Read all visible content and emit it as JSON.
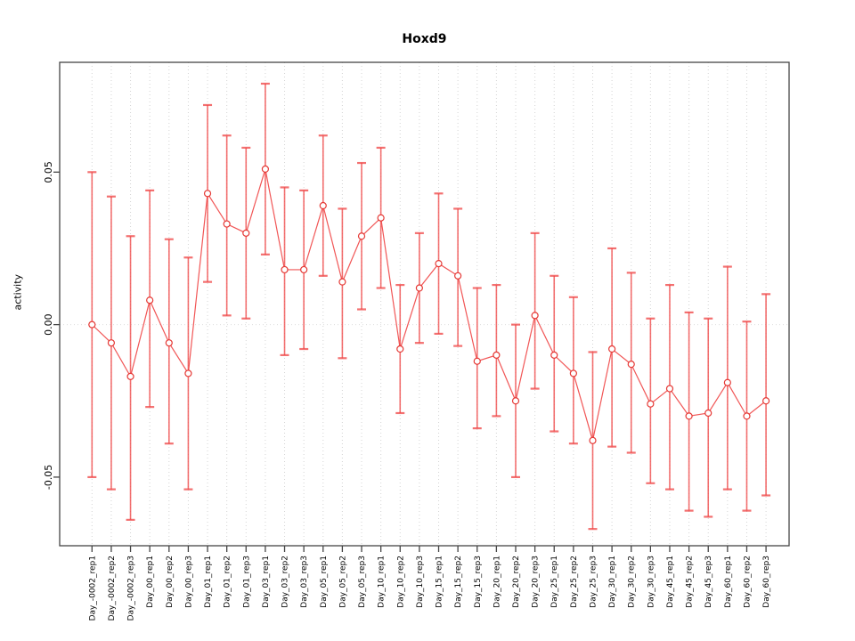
{
  "chart_data": {
    "type": "line",
    "title": "Hoxd9",
    "xlabel": "",
    "ylabel": "activity",
    "legend_position": "none",
    "grid": "vertical-dotted-per-category, dotted-zero-line",
    "ylim": [
      -0.0725,
      0.086
    ],
    "yticks": [
      0.05,
      0.0,
      -0.05
    ],
    "ytick_labels": [
      "0.05",
      "0.00",
      "-0.05"
    ],
    "zero_line": 0,
    "colors": {
      "point_stroke": "#e53935",
      "line": "#ef4444",
      "error_bar": "#f04848",
      "grid": "#d4d4d4",
      "axis": "#454545",
      "tick_text": "#000000"
    },
    "categories": [
      "Day_-0002_rep1",
      "Day_-0002_rep2",
      "Day_-0002_rep3",
      "Day_00_rep1",
      "Day_00_rep2",
      "Day_00_rep3",
      "Day_01_rep1",
      "Day_01_rep2",
      "Day_01_rep3",
      "Day_03_rep1",
      "Day_03_rep2",
      "Day_03_rep3",
      "Day_05_rep1",
      "Day_05_rep2",
      "Day_05_rep3",
      "Day_10_rep1",
      "Day_10_rep2",
      "Day_10_rep3",
      "Day_15_rep1",
      "Day_15_rep2",
      "Day_15_rep3",
      "Day_20_rep1",
      "Day_20_rep2",
      "Day_20_rep3",
      "Day_25_rep1",
      "Day_25_rep2",
      "Day_25_rep3",
      "Day_30_rep1",
      "Day_30_rep2",
      "Day_30_rep3",
      "Day_45_rep1",
      "Day_45_rep2",
      "Day_45_rep3",
      "Day_60_rep1",
      "Day_60_rep2",
      "Day_60_rep3"
    ],
    "series": [
      {
        "name": "activity",
        "values": [
          0.0,
          -0.006,
          -0.017,
          0.008,
          -0.006,
          -0.016,
          0.043,
          0.033,
          0.03,
          0.051,
          0.018,
          0.018,
          0.039,
          0.014,
          0.029,
          0.035,
          -0.008,
          0.012,
          0.02,
          0.016,
          -0.012,
          -0.01,
          -0.025,
          0.003,
          -0.01,
          -0.016,
          -0.038,
          -0.008,
          -0.013,
          -0.026,
          -0.021,
          -0.03,
          -0.029,
          -0.019,
          -0.03,
          -0.025
        ],
        "error_high": [
          0.05,
          0.042,
          0.029,
          0.044,
          0.028,
          0.022,
          0.072,
          0.062,
          0.058,
          0.079,
          0.045,
          0.044,
          0.062,
          0.038,
          0.053,
          0.058,
          0.013,
          0.03,
          0.043,
          0.038,
          0.012,
          0.013,
          0.0,
          0.03,
          0.016,
          0.009,
          -0.009,
          0.025,
          0.017,
          0.002,
          0.013,
          0.004,
          0.002,
          0.019,
          0.001,
          0.01
        ],
        "error_low": [
          -0.05,
          -0.054,
          -0.064,
          -0.027,
          -0.039,
          -0.054,
          0.014,
          0.003,
          0.002,
          0.023,
          -0.01,
          -0.008,
          0.016,
          -0.011,
          0.005,
          0.012,
          -0.029,
          -0.006,
          -0.003,
          -0.007,
          -0.034,
          -0.03,
          -0.05,
          -0.021,
          -0.035,
          -0.039,
          -0.067,
          -0.04,
          -0.042,
          -0.052,
          -0.054,
          -0.061,
          -0.063,
          -0.054,
          -0.061,
          -0.056
        ]
      }
    ]
  }
}
